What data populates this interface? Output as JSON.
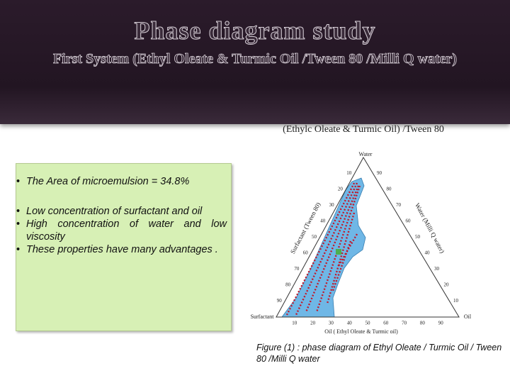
{
  "header": {
    "title": "Phase diagram study",
    "subtitle": "First System (Ethyl Oleate & Turmic Oil /Tween 80 /Milli Q water)"
  },
  "bullets": [
    "The Area of microemulsion  = 34.8%",
    "Low concentration of surfactant and oil",
    "High concentration of water and low viscosity",
    "These properties have many advantages ."
  ],
  "diagram": {
    "title": "(Ethylc Oleate & Turmic Oil) /Tween 80",
    "top_vertex": "Water",
    "left_vertex": "Surfactant",
    "right_vertex": "Oil",
    "left_axis": "Surfactant (Tween 80)",
    "right_axis": "Water (Milli Q water)",
    "bottom_axis": "Oil ( Ethyl Oleate & Turmic oil)",
    "bottom_ticks": [
      10,
      20,
      30,
      40,
      50,
      60,
      70,
      80,
      90
    ],
    "left_ticks": [
      10,
      20,
      30,
      40,
      50,
      60,
      70,
      80,
      90
    ],
    "right_ticks": [
      90,
      80,
      70,
      60,
      50,
      40,
      30,
      20,
      10
    ]
  },
  "caption": "Figure (1) : phase diagram of Ethyl Oleate / Turmic Oil /  Tween 80 /Milli Q water"
}
